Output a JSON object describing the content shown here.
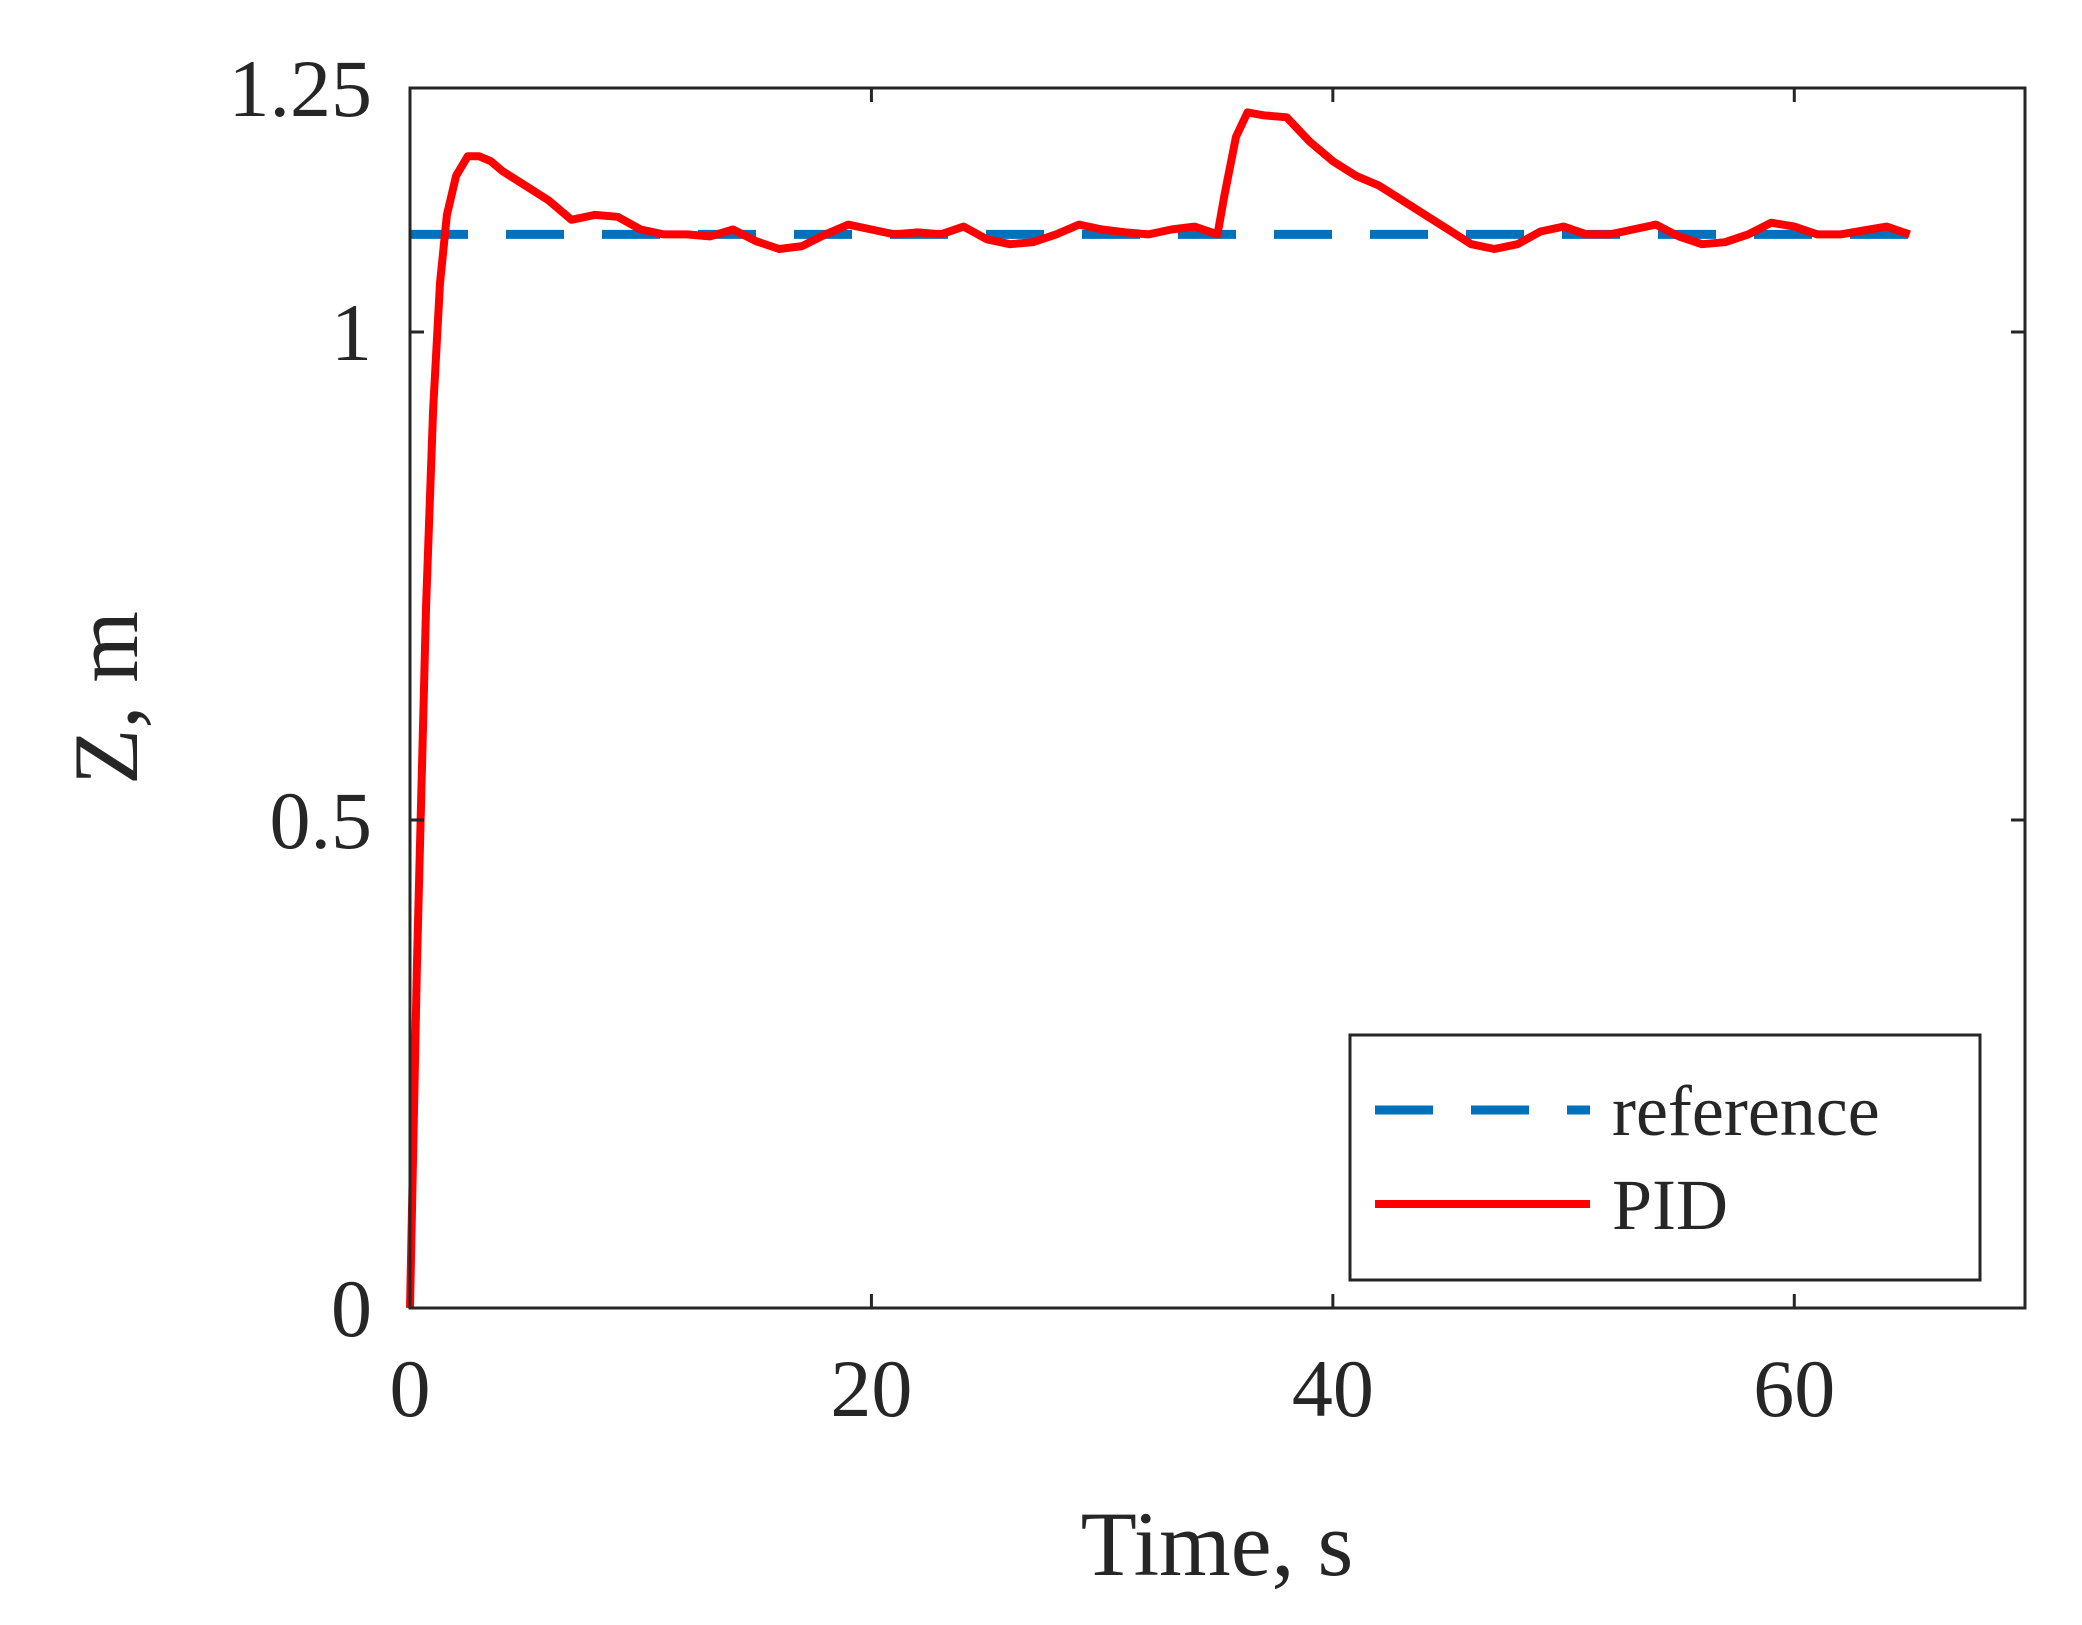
{
  "chart_data": {
    "type": "line",
    "title": "",
    "xlabel": "Time, s",
    "ylabel": "Z, m",
    "xlim": [
      0,
      70
    ],
    "ylim": [
      0,
      1.25
    ],
    "xticks": [
      0,
      20,
      40,
      60
    ],
    "xtick_labels": [
      "0",
      "20",
      "40",
      "60"
    ],
    "yticks": [
      0,
      0.5,
      1,
      1.25
    ],
    "ytick_labels": [
      "0",
      "0.5",
      "1",
      "1.25"
    ],
    "grid": false,
    "legend": {
      "position": "bottom-right",
      "entries": [
        "reference",
        "PID"
      ]
    },
    "series": [
      {
        "name": "reference",
        "style": "dashed",
        "color": "#0072BD",
        "x": [
          0,
          65
        ],
        "y": [
          1.1,
          1.1
        ]
      },
      {
        "name": "PID",
        "style": "solid",
        "color": "#FF0000",
        "x": [
          0,
          0.3,
          0.7,
          1.0,
          1.3,
          1.6,
          2.0,
          2.5,
          3.0,
          3.5,
          4,
          5,
          6,
          7,
          8,
          9,
          10,
          11,
          12,
          13,
          14,
          15,
          16,
          17,
          18,
          19,
          20,
          21,
          22,
          23,
          24,
          25,
          26,
          27,
          28,
          29,
          30,
          31,
          32,
          33,
          34,
          35,
          35.3,
          35.8,
          36.3,
          37,
          38,
          39,
          40,
          41,
          42,
          43,
          44,
          45,
          46,
          47,
          48,
          49,
          50,
          51,
          52,
          53,
          54,
          55,
          56,
          57,
          58,
          59,
          60,
          61,
          62,
          63,
          64,
          65
        ],
        "y": [
          0,
          0.35,
          0.72,
          0.92,
          1.05,
          1.12,
          1.16,
          1.18,
          1.18,
          1.175,
          1.165,
          1.15,
          1.135,
          1.115,
          1.12,
          1.118,
          1.105,
          1.1,
          1.1,
          1.098,
          1.105,
          1.093,
          1.085,
          1.088,
          1.1,
          1.11,
          1.105,
          1.1,
          1.102,
          1.1,
          1.108,
          1.095,
          1.09,
          1.092,
          1.1,
          1.11,
          1.105,
          1.102,
          1.1,
          1.105,
          1.108,
          1.1,
          1.14,
          1.2,
          1.225,
          1.222,
          1.22,
          1.195,
          1.175,
          1.16,
          1.15,
          1.135,
          1.12,
          1.105,
          1.09,
          1.085,
          1.09,
          1.103,
          1.108,
          1.1,
          1.1,
          1.105,
          1.11,
          1.098,
          1.09,
          1.092,
          1.1,
          1.112,
          1.108,
          1.1,
          1.1,
          1.104,
          1.108,
          1.1
        ]
      }
    ]
  }
}
